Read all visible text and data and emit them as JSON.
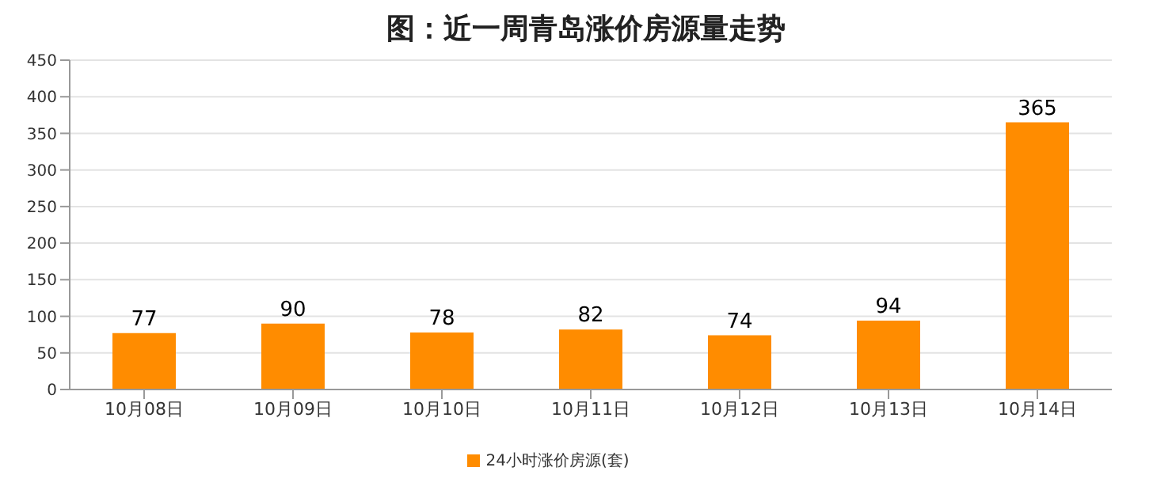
{
  "chart_data": {
    "type": "bar",
    "title": "图：近一周青岛涨价房源量走势",
    "categories": [
      "10月08日",
      "10月09日",
      "10月10日",
      "10月11日",
      "10月12日",
      "10月13日",
      "10月14日"
    ],
    "series": [
      {
        "name": "24小时涨价房源(套)",
        "color": "#ff8c00",
        "values": [
          77,
          90,
          78,
          82,
          74,
          94,
          365
        ]
      }
    ],
    "ylim": [
      0,
      450
    ],
    "yticks": [
      0,
      50,
      100,
      150,
      200,
      250,
      300,
      350,
      400,
      450
    ],
    "grid": "y",
    "legend": "bottom",
    "data_labels": true
  }
}
